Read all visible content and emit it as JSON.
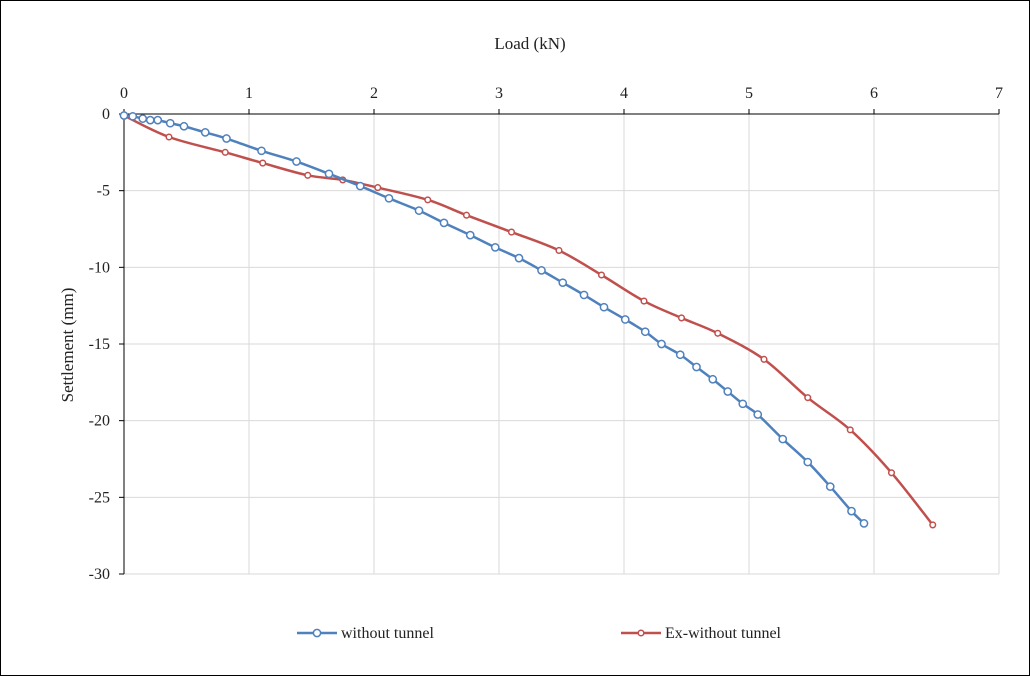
{
  "chart_data": {
    "type": "line",
    "title": "",
    "xlabel": "Load (kN)",
    "ylabel": "Settlement (mm)",
    "x_axis_position": "top",
    "xlim": [
      0,
      7
    ],
    "ylim": [
      -30,
      0
    ],
    "x_ticks": [
      0,
      1,
      2,
      3,
      4,
      5,
      6,
      7
    ],
    "y_ticks": [
      0,
      -5,
      -10,
      -15,
      -20,
      -25,
      -30
    ],
    "x_tick_labels": [
      "0",
      "1",
      "2",
      "3",
      "4",
      "5",
      "6",
      "7"
    ],
    "y_tick_labels": [
      "0",
      "-5",
      "-10",
      "-15",
      "-20",
      "-25",
      "-30"
    ],
    "grid": true,
    "legend_position": "bottom",
    "series": [
      {
        "name": "without tunnel",
        "color": "#4f81bd",
        "marker": "open-circle",
        "x": [
          0,
          0.07,
          0.15,
          0.21,
          0.27,
          0.37,
          0.48,
          0.65,
          0.82,
          1.1,
          1.38,
          1.64,
          1.89,
          2.12,
          2.36,
          2.56,
          2.77,
          2.97,
          3.16,
          3.34,
          3.51,
          3.68,
          3.84,
          4.01,
          4.17,
          4.3,
          4.45,
          4.58,
          4.71,
          4.83,
          4.95,
          5.07,
          5.27,
          5.47,
          5.65,
          5.82,
          5.92
        ],
        "y": [
          -0.1,
          -0.15,
          -0.3,
          -0.4,
          -0.4,
          -0.6,
          -0.8,
          -1.2,
          -1.6,
          -2.4,
          -3.1,
          -3.9,
          -4.7,
          -5.5,
          -6.3,
          -7.1,
          -7.9,
          -8.7,
          -9.4,
          -10.2,
          -11.0,
          -11.8,
          -12.6,
          -13.4,
          -14.2,
          -15.0,
          -15.7,
          -16.5,
          -17.3,
          -18.1,
          -18.9,
          -19.6,
          -21.2,
          -22.7,
          -24.3,
          -25.9,
          -26.7
        ]
      },
      {
        "name": "Ex-without tunnel",
        "color": "#c0504d",
        "marker": "open-circle",
        "x": [
          0,
          0.36,
          0.81,
          1.11,
          1.47,
          1.75,
          2.03,
          2.43,
          2.74,
          3.1,
          3.48,
          3.82,
          4.16,
          4.46,
          4.75,
          5.12,
          5.47,
          5.81,
          6.14,
          6.47
        ],
        "y": [
          -0.1,
          -1.5,
          -2.5,
          -3.2,
          -4.0,
          -4.3,
          -4.8,
          -5.6,
          -6.6,
          -7.7,
          -8.9,
          -10.5,
          -12.2,
          -13.3,
          -14.3,
          -16.0,
          -18.5,
          -20.6,
          -23.4,
          -26.8
        ]
      }
    ]
  }
}
